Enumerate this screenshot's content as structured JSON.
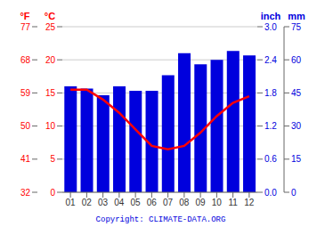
{
  "chart_data": {
    "type": "bar",
    "categories": [
      "01",
      "02",
      "03",
      "04",
      "05",
      "06",
      "07",
      "08",
      "09",
      "10",
      "11",
      "12"
    ],
    "series": [
      {
        "type": "bar",
        "color": "#0000dd",
        "axis": "y2",
        "values": [
          48,
          47,
          44,
          48,
          46,
          46,
          53,
          63,
          58,
          60,
          64,
          62
        ]
      },
      {
        "type": "line",
        "color": "#ff0000",
        "values": [
          15.5,
          15.5,
          14.0,
          12.0,
          9.5,
          7.0,
          6.5,
          7.0,
          9.0,
          11.5,
          13.5,
          14.5
        ]
      }
    ],
    "ylim": [
      0,
      25
    ],
    "yticks": [
      0,
      5,
      10,
      15,
      20,
      25
    ],
    "ylabel": "°C",
    "y3lim": [
      0,
      25
    ],
    "y3ticks": [
      {
        "value": 0,
        "label": "32"
      },
      {
        "value": 5,
        "label": "41"
      },
      {
        "value": 10,
        "label": "50"
      },
      {
        "value": 15,
        "label": "59"
      },
      {
        "value": 20,
        "label": "68"
      },
      {
        "value": 25,
        "label": "77"
      }
    ],
    "y3label": "°F",
    "y2lim": [
      0,
      75
    ],
    "y2ticks": [
      0,
      15,
      30,
      45,
      60,
      75
    ],
    "y2label": "mm",
    "y4lim": [
      0,
      75
    ],
    "y4ticks": [
      {
        "value": 0,
        "label": "0.0"
      },
      {
        "value": 15,
        "label": "0.6"
      },
      {
        "value": 30,
        "label": "1.2"
      },
      {
        "value": 45,
        "label": "1.8"
      },
      {
        "value": 60,
        "label": "2.4"
      },
      {
        "value": 75,
        "label": "3.0"
      }
    ],
    "y4label": "inch",
    "annotation": "Copyright: CLIMATE-DATA.ORG",
    "grid": true
  }
}
